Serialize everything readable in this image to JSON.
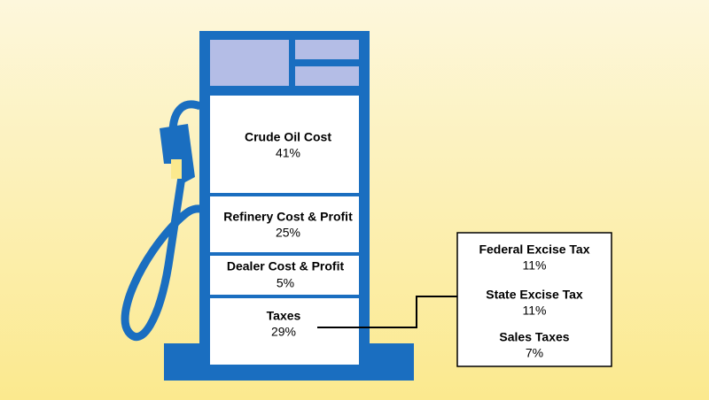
{
  "segments": [
    {
      "label": "Crude Oil Cost",
      "value": "41%"
    },
    {
      "label": "Refinery Cost & Profit",
      "value": "25%"
    },
    {
      "label": "Dealer Cost & Profit",
      "value": "5%"
    },
    {
      "label": "Taxes",
      "value": "29%"
    }
  ],
  "tax_breakdown": [
    {
      "label": "Federal Excise Tax",
      "value": "11%"
    },
    {
      "label": "State Excise Tax",
      "value": "11%"
    },
    {
      "label": "Sales Taxes",
      "value": "7%"
    }
  ]
}
